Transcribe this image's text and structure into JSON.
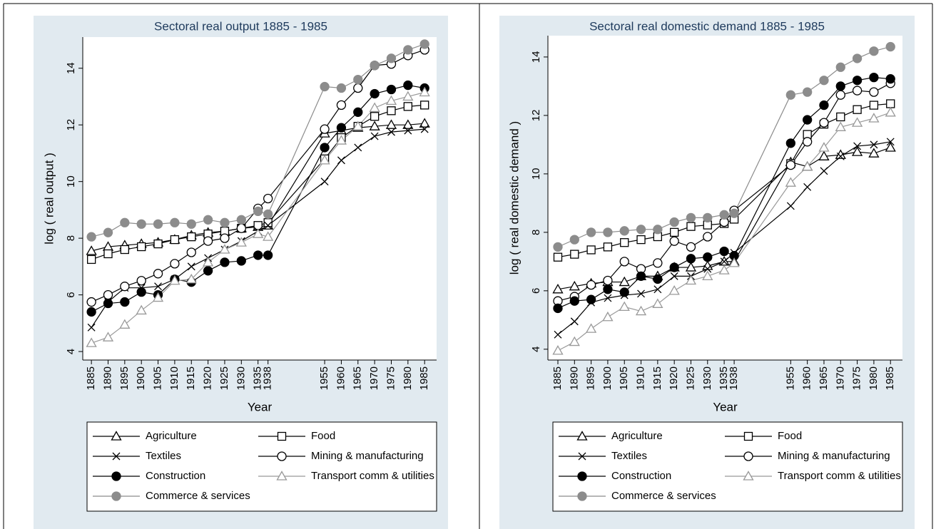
{
  "chart_data": [
    {
      "type": "line",
      "title": "Sectoral real output 1885 - 1985",
      "x_label": "Year",
      "y_label": "log ( real output )",
      "x": [
        1885,
        1890,
        1895,
        1900,
        1905,
        1910,
        1915,
        1920,
        1925,
        1930,
        1935,
        1938,
        1955,
        1960,
        1965,
        1970,
        1975,
        1980,
        1985
      ],
      "xlim": [
        1882.4,
        1988.6
      ],
      "xticks": [
        1885,
        1890,
        1895,
        1900,
        1905,
        1910,
        1915,
        1920,
        1925,
        1930,
        1935,
        1938,
        1955,
        1960,
        1965,
        1970,
        1975,
        1980,
        1985
      ],
      "ylim": [
        3.7,
        15.1
      ],
      "yticks": [
        4,
        6,
        8,
        10,
        12,
        14
      ],
      "grid": false,
      "legend": "bottom",
      "series": [
        {
          "name": "Agriculture",
          "color": "#000000",
          "marker": "triangle",
          "fill": "none",
          "values": [
            7.55,
            7.7,
            7.75,
            7.8,
            7.85,
            7.95,
            8.1,
            8.2,
            8.25,
            8.35,
            8.4,
            8.45,
            11.7,
            11.8,
            11.9,
            11.95,
            12.0,
            12.0,
            12.05
          ]
        },
        {
          "name": "Food",
          "color": "#000000",
          "marker": "square",
          "fill": "none",
          "values": [
            7.25,
            7.45,
            7.6,
            7.7,
            7.8,
            7.95,
            8.05,
            8.15,
            8.25,
            8.35,
            8.45,
            8.55,
            10.8,
            11.55,
            11.95,
            12.3,
            12.5,
            12.65,
            12.7
          ]
        },
        {
          "name": "Textiles",
          "color": "#000000",
          "marker": "x",
          "fill": "none",
          "values": [
            4.85,
            5.75,
            6.25,
            6.25,
            6.3,
            6.55,
            7.0,
            7.3,
            7.6,
            7.9,
            8.25,
            8.45,
            10.0,
            10.75,
            11.2,
            11.6,
            11.75,
            11.8,
            11.85
          ]
        },
        {
          "name": "Mining & manufacturing",
          "color": "#000000",
          "marker": "circle",
          "fill": "none",
          "values": [
            5.75,
            6.0,
            6.3,
            6.5,
            6.75,
            7.1,
            7.5,
            7.9,
            8.0,
            8.35,
            9.05,
            9.4,
            11.85,
            12.7,
            13.3,
            14.1,
            14.15,
            14.45,
            14.65
          ]
        },
        {
          "name": "Construction",
          "color": "#000000",
          "marker": "circle",
          "fill": "#000000",
          "values": [
            5.4,
            5.7,
            5.75,
            6.1,
            6.0,
            6.55,
            6.45,
            6.85,
            7.15,
            7.2,
            7.4,
            7.4,
            11.2,
            11.9,
            12.45,
            13.1,
            13.25,
            13.4,
            13.3
          ]
        },
        {
          "name": "Transport comm & utilities",
          "color": "#999999",
          "marker": "triangle",
          "fill": "none",
          "values": [
            4.3,
            4.5,
            4.95,
            5.45,
            5.9,
            6.5,
            6.55,
            7.15,
            7.6,
            7.85,
            8.15,
            8.05,
            10.75,
            11.45,
            11.95,
            12.6,
            12.85,
            13.0,
            13.15
          ]
        },
        {
          "name": "Commerce & services",
          "color": "#8c8c8c",
          "marker": "circle",
          "fill": "#8c8c8c",
          "values": [
            8.05,
            8.2,
            8.55,
            8.5,
            8.5,
            8.55,
            8.5,
            8.65,
            8.55,
            8.65,
            8.95,
            8.85,
            13.35,
            13.3,
            13.6,
            14.1,
            14.35,
            14.65,
            14.85
          ]
        }
      ]
    },
    {
      "type": "line",
      "title": "Sectoral real domestic demand 1885 - 1985",
      "x_label": "Year",
      "y_label": "log ( real domestic demand )",
      "x": [
        1885,
        1890,
        1895,
        1900,
        1905,
        1910,
        1915,
        1920,
        1925,
        1930,
        1935,
        1938,
        1955,
        1960,
        1965,
        1970,
        1975,
        1980,
        1985
      ],
      "xlim": [
        1882,
        1988.6
      ],
      "xticks": [
        1885,
        1890,
        1895,
        1900,
        1905,
        1910,
        1915,
        1920,
        1925,
        1930,
        1935,
        1938,
        1955,
        1960,
        1965,
        1970,
        1975,
        1980,
        1985
      ],
      "ylim": [
        3.63,
        14.73
      ],
      "yticks": [
        4,
        6,
        8,
        10,
        12,
        14
      ],
      "grid": false,
      "legend": "bottom",
      "series": [
        {
          "name": "Agriculture",
          "color": "#000000",
          "marker": "triangle",
          "fill": "none",
          "values": [
            6.05,
            6.15,
            6.25,
            6.3,
            6.3,
            6.5,
            6.5,
            6.8,
            6.8,
            6.85,
            7.0,
            7.0,
            10.4,
            10.25,
            10.6,
            10.65,
            10.75,
            10.7,
            10.9
          ]
        },
        {
          "name": "Food",
          "color": "#000000",
          "marker": "square",
          "fill": "none",
          "values": [
            7.15,
            7.25,
            7.4,
            7.5,
            7.65,
            7.75,
            7.85,
            8.0,
            8.2,
            8.25,
            8.3,
            8.45,
            10.35,
            11.35,
            11.7,
            11.95,
            12.2,
            12.35,
            12.4
          ]
        },
        {
          "name": "Textiles",
          "color": "#000000",
          "marker": "x",
          "fill": "none",
          "values": [
            4.5,
            4.95,
            5.6,
            5.75,
            5.85,
            5.9,
            6.05,
            6.5,
            6.5,
            6.75,
            7.0,
            7.3,
            8.9,
            9.55,
            10.1,
            10.6,
            10.95,
            11.0,
            11.1
          ]
        },
        {
          "name": "Mining & manufacturing",
          "color": "#000000",
          "marker": "circle",
          "fill": "none",
          "values": [
            5.65,
            5.8,
            6.2,
            6.35,
            7.0,
            6.75,
            6.95,
            7.7,
            7.5,
            7.85,
            8.35,
            8.75,
            10.3,
            11.1,
            11.75,
            12.7,
            12.85,
            12.8,
            13.1
          ]
        },
        {
          "name": "Construction",
          "color": "#000000",
          "marker": "circle",
          "fill": "#000000",
          "values": [
            5.4,
            5.65,
            5.7,
            6.05,
            5.95,
            6.5,
            6.4,
            6.8,
            7.1,
            7.15,
            7.35,
            7.2,
            11.05,
            11.85,
            12.35,
            13.0,
            13.2,
            13.3,
            13.25
          ]
        },
        {
          "name": "Transport comm & utilities",
          "color": "#999999",
          "marker": "triangle",
          "fill": "none",
          "values": [
            3.95,
            4.25,
            4.7,
            5.1,
            5.45,
            5.3,
            5.55,
            6.0,
            6.35,
            6.5,
            6.7,
            6.95,
            9.7,
            10.25,
            10.9,
            11.6,
            11.75,
            11.9,
            12.1
          ]
        },
        {
          "name": "Commerce & services",
          "color": "#8c8c8c",
          "marker": "circle",
          "fill": "#8c8c8c",
          "values": [
            7.5,
            7.75,
            8.0,
            8.0,
            8.05,
            8.1,
            8.1,
            8.35,
            8.5,
            8.5,
            8.6,
            8.65,
            12.7,
            12.8,
            13.2,
            13.65,
            13.95,
            14.2,
            14.35
          ]
        }
      ]
    }
  ]
}
